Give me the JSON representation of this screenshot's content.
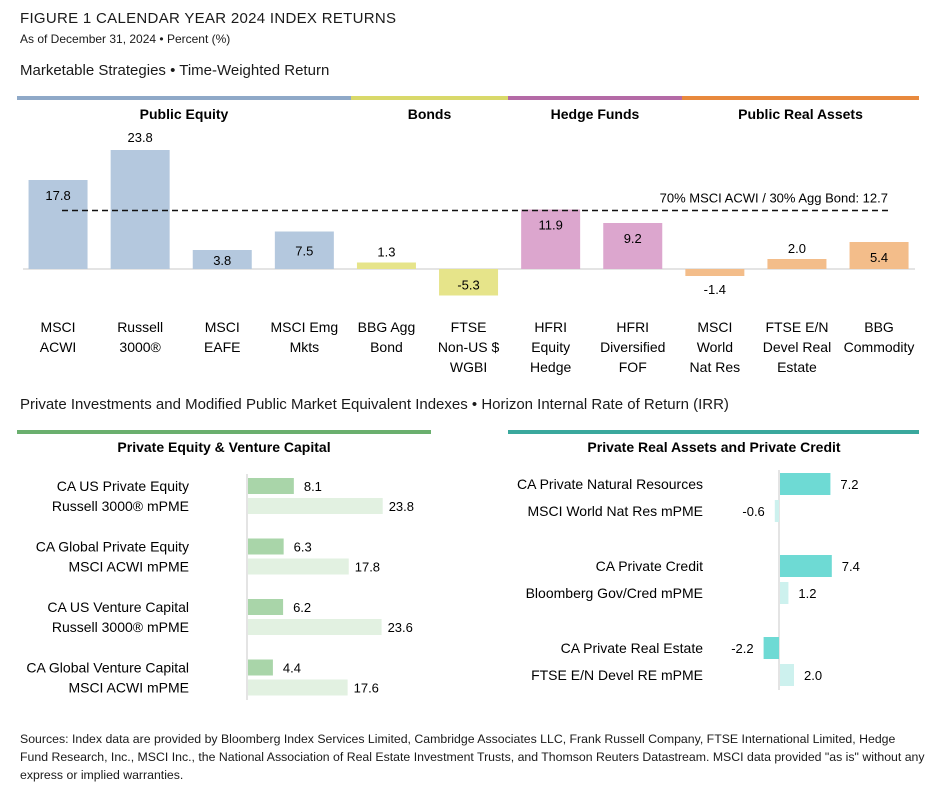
{
  "figure": {
    "title": "FIGURE 1   CALENDAR YEAR 2024 INDEX RETURNS",
    "subtitle": "As of December 31, 2024 • Percent (%)"
  },
  "colors": {
    "public_equity": "#b4c8de",
    "bonds": "#e6e48a",
    "hedge_funds": "#dca6ce",
    "public_real_assets": "#f3bd8a",
    "pe_vc_dark": "#a9d5a9",
    "pe_vc_light": "#e2f1e1",
    "pra_dark": "#6edad4",
    "pra_light": "#cdf1ee",
    "pe_header_line": "#6aaf6e",
    "pra_header_line": "#3aa89d"
  },
  "section1": {
    "title": "Marketable Strategies • Time-Weighted Return"
  },
  "section2": {
    "title": "Private Investments and Modified Public Market Equivalent Indexes • Horizon Internal Rate of Return (IRR)"
  },
  "chart_data": [
    {
      "type": "bar",
      "groups": [
        {
          "name": "Public Equity",
          "color": "#8fa9c8"
        },
        {
          "name": "Bonds",
          "color": "#d9d96a"
        },
        {
          "name": "Hedge Funds",
          "color": "#b46aa6"
        },
        {
          "name": "Public Real Assets",
          "color": "#e8893d"
        }
      ],
      "categories": [
        [
          "MSCI",
          "ACWI"
        ],
        [
          "Russell",
          "3000®"
        ],
        [
          "MSCI",
          "EAFE"
        ],
        [
          "MSCI Emg",
          "Mkts"
        ],
        [
          "BBG Agg",
          "Bond"
        ],
        [
          "FTSE",
          "Non-US $",
          "WGBI"
        ],
        [
          "HFRI",
          "Equity",
          "Hedge"
        ],
        [
          "HFRI",
          "Diversified",
          "FOF"
        ],
        [
          "MSCI",
          "World",
          "Nat Res"
        ],
        [
          "FTSE E/N",
          "Devel Real",
          "Estate"
        ],
        [
          "BBG",
          "Commodity"
        ]
      ],
      "values": [
        17.8,
        23.8,
        3.8,
        7.5,
        1.3,
        -5.3,
        11.9,
        9.2,
        -1.4,
        2.0,
        5.4
      ],
      "value_labels": [
        "17.8",
        "23.8",
        "3.8",
        "7.5",
        "1.3",
        "-5.3",
        "11.9",
        "9.2",
        "-1.4",
        "2.0",
        "5.4"
      ],
      "group_index": [
        0,
        0,
        0,
        0,
        1,
        1,
        2,
        2,
        3,
        3,
        3
      ],
      "reference_line": {
        "label": "70% MSCI ACWI / 30% Agg Bond: 12.7",
        "value": 12.7
      },
      "ylim": [
        -5.3,
        23.8
      ]
    },
    {
      "type": "bar",
      "orientation": "horizontal",
      "title": "Private Equity & Venture Capital",
      "pairs": [
        {
          "private_label": "CA US Private Equity",
          "private_value": 8.1,
          "private_text": "8.1",
          "pme_label": "Russell 3000® mPME",
          "pme_value": 23.8,
          "pme_text": "23.8"
        },
        {
          "private_label": "CA Global Private Equity",
          "private_value": 6.3,
          "private_text": "6.3",
          "pme_label": "MSCI ACWI mPME",
          "pme_value": 17.8,
          "pme_text": "17.8"
        },
        {
          "private_label": "CA US Venture Capital",
          "private_value": 6.2,
          "private_text": "6.2",
          "pme_label": "Russell 3000® mPME",
          "pme_value": 23.6,
          "pme_text": "23.6"
        },
        {
          "private_label": "CA Global Venture Capital",
          "private_value": 4.4,
          "private_text": "4.4",
          "pme_label": "MSCI ACWI mPME",
          "pme_value": 17.6,
          "pme_text": "17.6"
        }
      ]
    },
    {
      "type": "bar",
      "orientation": "horizontal",
      "title": "Private Real Assets and Private Credit",
      "pairs": [
        {
          "private_label": "CA Private Natural Resources",
          "private_value": 7.2,
          "private_text": "7.2",
          "pme_label": "MSCI World Nat Res mPME",
          "pme_value": -0.6,
          "pme_text": "-0.6"
        },
        {
          "private_label": "CA Private Credit",
          "private_value": 7.4,
          "private_text": "7.4",
          "pme_label": "Bloomberg Gov/Cred mPME",
          "pme_value": 1.2,
          "pme_text": "1.2"
        },
        {
          "private_label": "CA Private Real Estate",
          "private_value": -2.2,
          "private_text": "-2.2",
          "pme_label": "FTSE E/N Devel RE mPME",
          "pme_value": 2.0,
          "pme_text": "2.0"
        }
      ]
    }
  ],
  "sources": "Sources: Index data are provided by Bloomberg Index Services Limited, Cambridge Associates LLC, Frank Russell Company, FTSE International Limited, Hedge Fund Research, Inc., MSCI Inc., the National Association of Real Estate Investment Trusts, and Thomson Reuters Datastream. MSCI data provided \"as is\" without any express or implied warranties."
}
